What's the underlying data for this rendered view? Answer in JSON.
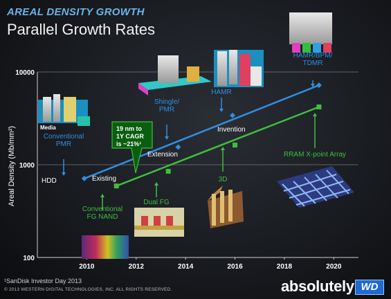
{
  "header": {
    "kicker": "AREAL DENSITY GROWTH",
    "title": "Parallel Growth Rates"
  },
  "footer": {
    "footnote": "¹SanDisk Investor Day 2013",
    "copyright": "© 2013 WESTERN DIGITAL TECHNOLOGIES, INC. ALL RIGHTS RESERVED.",
    "brand": "absolutely",
    "logo": "WD"
  },
  "colors": {
    "hdd": "#2f8fe0",
    "nand": "#3fbf3f",
    "kicker": "#6ab4e8",
    "callout_fill": "#0b5e10"
  },
  "chart_data": {
    "type": "line",
    "ylabel": "Areal Density (Mb/mm²)",
    "xlabel": "",
    "xlim": [
      2008,
      2021
    ],
    "ylim": [
      100,
      10000
    ],
    "yscale": "log",
    "x_ticks": [
      2010,
      2012,
      2014,
      2016,
      2018,
      2020
    ],
    "y_ticks": [
      100,
      1000,
      10000
    ],
    "grid": "horizontal at 1000 and 10000",
    "series": [
      {
        "name": "HDD",
        "color": "#2f8fe0",
        "line": [
          [
            2009.9,
            710
          ],
          [
            2019.4,
            7200
          ]
        ],
        "points": [
          [
            2009.9,
            710
          ],
          [
            2013.7,
            1550
          ],
          [
            2015.9,
            3400
          ],
          [
            2019.4,
            7200
          ]
        ]
      },
      {
        "name": "NAND",
        "color": "#3fbf3f",
        "line": [
          [
            2011.2,
            590
          ],
          [
            2019.4,
            4200
          ]
        ],
        "points": [
          [
            2011.2,
            590
          ],
          [
            2013.3,
            850
          ],
          [
            2016.0,
            1630
          ],
          [
            2019.4,
            4200
          ]
        ]
      }
    ],
    "labels": [
      {
        "text": "HDD",
        "color": "white"
      },
      {
        "text": "Existing",
        "color": "white"
      },
      {
        "text": "Extension",
        "color": "white"
      },
      {
        "text": "Invention",
        "color": "white"
      },
      {
        "text": "Conventional PMR",
        "color": "#2f8fe0"
      },
      {
        "text": "Shingle/ PMR",
        "color": "#2f8fe0"
      },
      {
        "text": "HAMR",
        "color": "#2f8fe0"
      },
      {
        "text": "HAMR/BPM/ TDMR",
        "color": "#2f8fe0"
      },
      {
        "text": "Conventional FG NAND",
        "color": "#3fbf3f"
      },
      {
        "text": "Dual FG",
        "color": "#3fbf3f"
      },
      {
        "text": "3D",
        "color": "#3fbf3f"
      },
      {
        "text": "RRAM X-point Array",
        "color": "#3fbf3f"
      }
    ],
    "callout": "19 nm to 1Y CAGR is ~21%¹"
  },
  "annotations": {
    "media": "Media"
  }
}
